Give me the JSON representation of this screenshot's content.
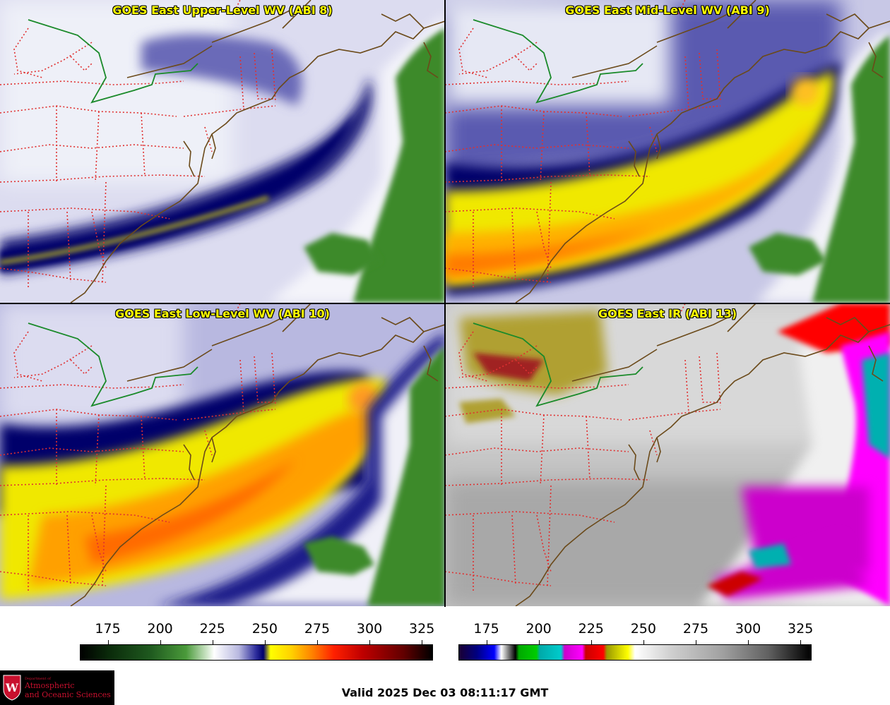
{
  "panels": [
    {
      "title": "GOES East Upper-Level WV (ABI 8)"
    },
    {
      "title": "GOES East Mid-Level WV (ABI 9)"
    },
    {
      "title": "GOES East Low-Level WV (ABI 10)"
    },
    {
      "title": "GOES East IR (ABI 13)"
    }
  ],
  "colorbars": [
    {
      "ticks": [
        "175",
        "200",
        "225",
        "250",
        "275",
        "300",
        "325"
      ],
      "range": [
        162,
        330
      ]
    },
    {
      "ticks": [
        "175",
        "200",
        "225",
        "250",
        "275",
        "300",
        "325"
      ],
      "range": [
        162,
        330
      ]
    }
  ],
  "logo": {
    "department": "Department of",
    "line1": "Atmospheric",
    "line2": "and Oceanic Sciences",
    "seal_letter": "W",
    "colors": {
      "background": "#000000",
      "text": "#c8102e"
    }
  },
  "valid_time": "Valid 2025 Dec 03 08:11:17 GMT",
  "colors": {
    "state_borders": "#e03030",
    "coastline": "#6b4a1a",
    "canada_border": "#1a8a2a",
    "title_text": "#ffff00"
  }
}
